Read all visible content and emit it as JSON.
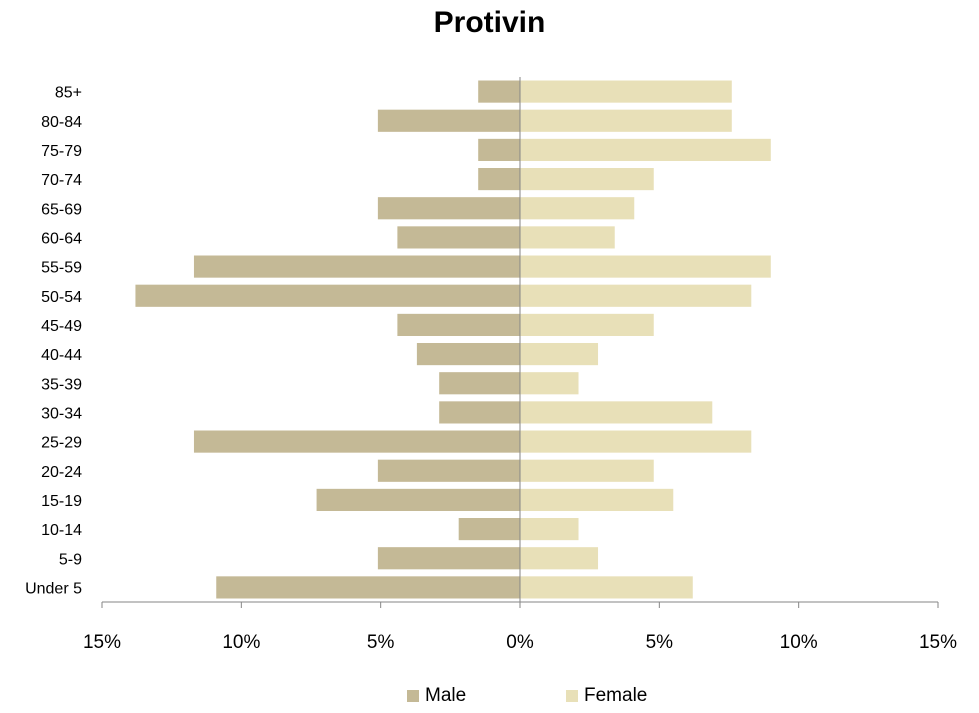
{
  "chart_data": {
    "type": "bar",
    "orientation": "horizontal",
    "title": "Protivin",
    "categories": [
      "Under 5",
      "5-9",
      "10-14",
      "15-19",
      "20-24",
      "25-29",
      "30-34",
      "35-39",
      "40-44",
      "45-49",
      "50-54",
      "55-59",
      "60-64",
      "65-69",
      "70-74",
      "75-79",
      "80-84",
      "85+"
    ],
    "series": [
      {
        "name": "Male",
        "color": "#c4b996",
        "values": [
          10.9,
          5.1,
          2.2,
          7.3,
          5.1,
          11.7,
          2.9,
          2.9,
          3.7,
          4.4,
          13.8,
          11.7,
          4.4,
          5.1,
          1.5,
          1.5,
          5.1,
          1.5
        ]
      },
      {
        "name": "Female",
        "color": "#e8e0b8",
        "values": [
          6.2,
          2.8,
          2.1,
          5.5,
          4.8,
          8.3,
          6.9,
          2.1,
          2.8,
          4.8,
          8.3,
          9.0,
          3.4,
          4.1,
          4.8,
          9.0,
          7.6,
          7.6
        ]
      }
    ],
    "xlim": [
      -15,
      15
    ],
    "x_ticks": [
      -15,
      -10,
      -5,
      0,
      5,
      10,
      15
    ],
    "x_tick_labels": [
      "15%",
      "10%",
      "5%",
      "0%",
      "5%",
      "10%",
      "15%"
    ],
    "xlabel": "",
    "ylabel": "",
    "grid": false,
    "legend_position": "bottom"
  }
}
